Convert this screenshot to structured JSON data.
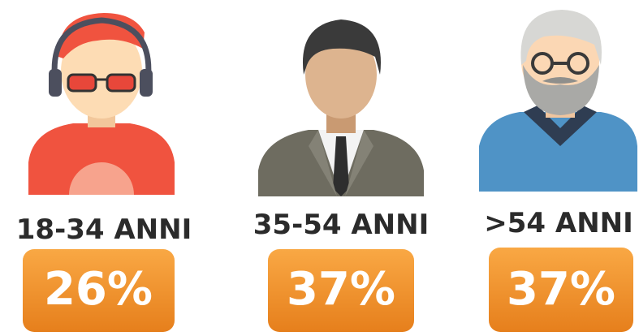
{
  "groups": [
    {
      "label": "18-34 ANNI",
      "value": "26%"
    },
    {
      "label": "35-54 ANNI",
      "value": "37%"
    },
    {
      "label": ">54 ANNI",
      "value": "37%"
    }
  ]
}
